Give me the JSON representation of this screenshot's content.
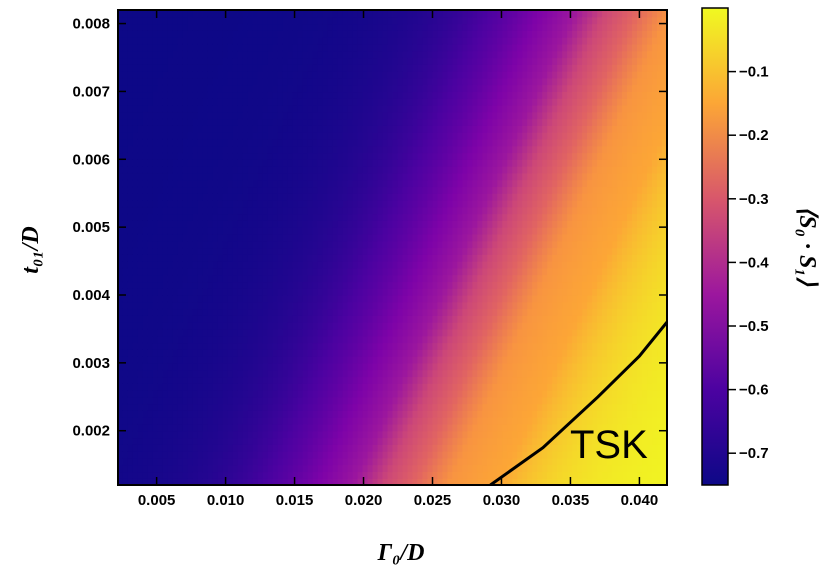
{
  "chart_data": {
    "type": "heatmap",
    "xlabel": "Γ₀/D",
    "ylabel": "t₀₁/D",
    "colorbar_label": "⟨S₀ · S₁⟩",
    "xlim": [
      0.0022,
      0.042
    ],
    "ylim": [
      0.0012,
      0.0082
    ],
    "x_ticks": [
      0.005,
      0.01,
      0.015,
      0.02,
      0.025,
      0.03,
      0.035,
      0.04
    ],
    "x_tick_labels": [
      "0.005",
      "0.010",
      "0.015",
      "0.020",
      "0.025",
      "0.030",
      "0.035",
      "0.040"
    ],
    "y_ticks": [
      0.002,
      0.003,
      0.004,
      0.005,
      0.006,
      0.007,
      0.008
    ],
    "y_tick_labels": [
      "0.002",
      "0.003",
      "0.004",
      "0.005",
      "0.006",
      "0.007",
      "0.008"
    ],
    "colorbar_range": [
      -0.75,
      0.0
    ],
    "colorbar_ticks": [
      -0.1,
      -0.2,
      -0.3,
      -0.4,
      -0.5,
      -0.6,
      -0.7
    ],
    "colorbar_tick_labels": [
      "−0.1",
      "−0.2",
      "−0.3",
      "−0.4",
      "−0.5",
      "−0.6",
      "−0.7"
    ],
    "colormap": "plasma",
    "region_label": "TSK",
    "boundary_curve": {
      "x": [
        0.0292,
        0.033,
        0.037,
        0.04,
        0.042
      ],
      "y": [
        0.0012,
        0.00175,
        0.0025,
        0.0031,
        0.0036
      ]
    }
  }
}
